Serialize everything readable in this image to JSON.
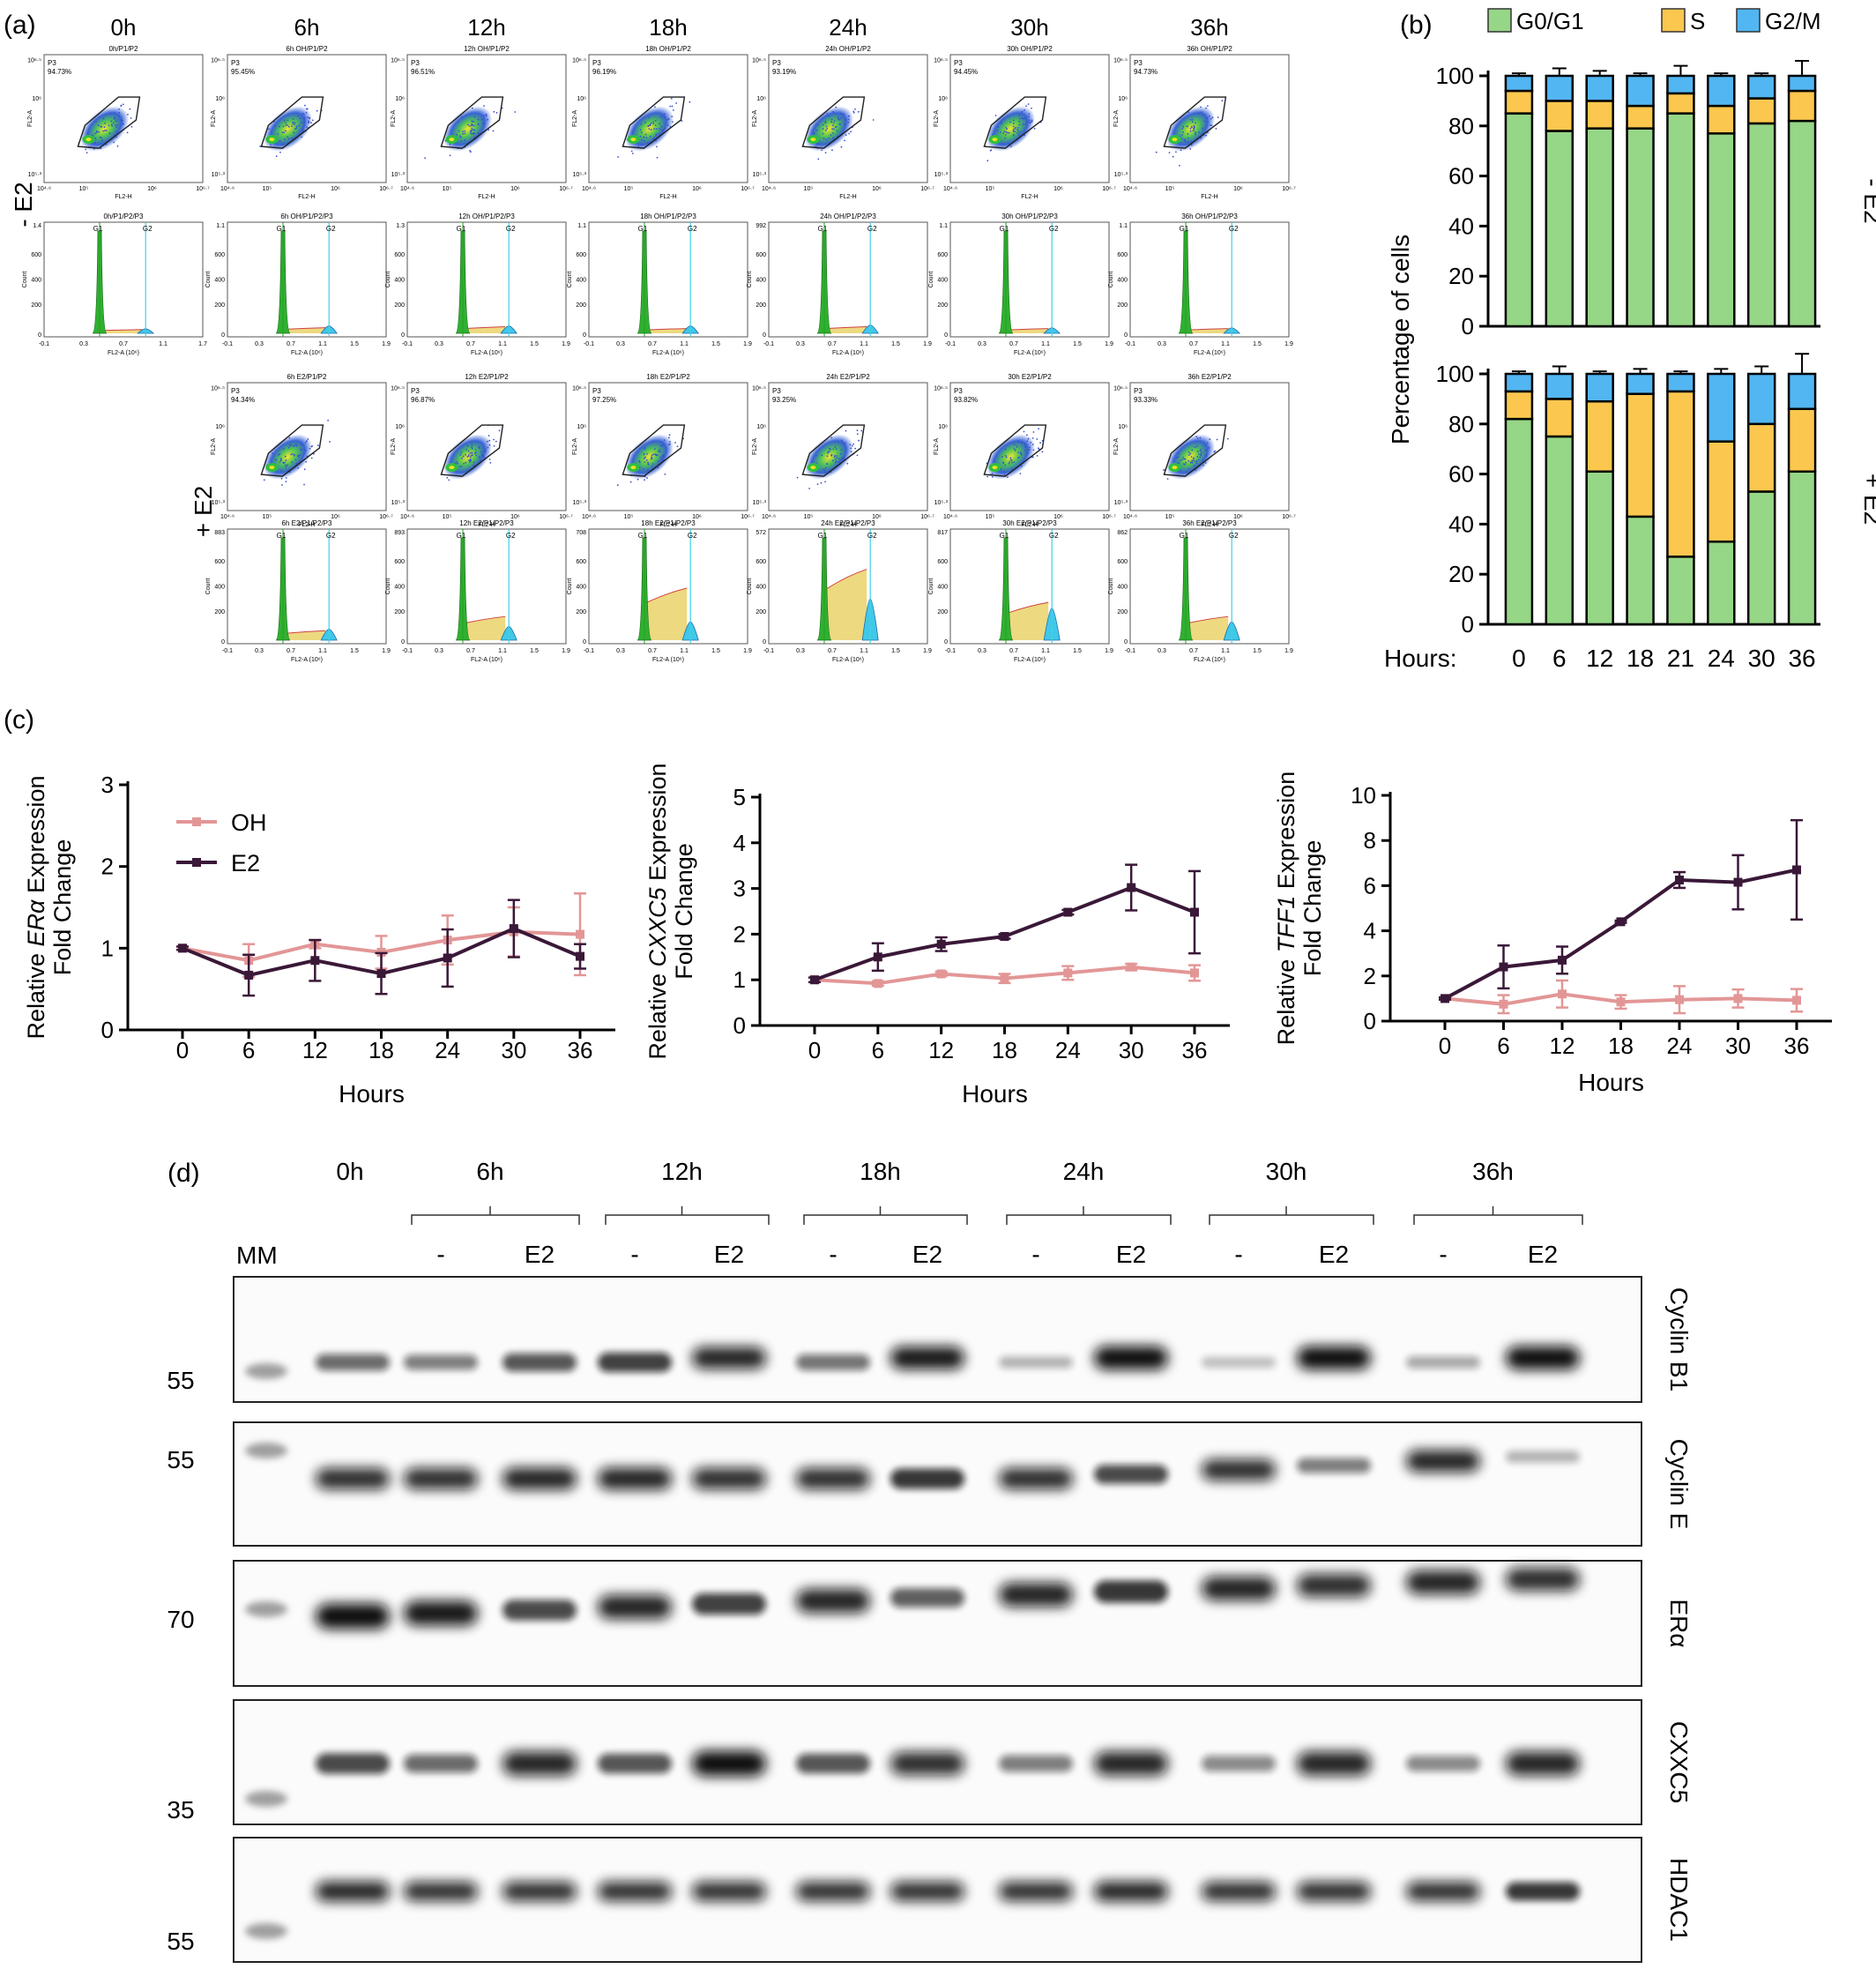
{
  "panel_labels": {
    "a": "(a)",
    "b": "(b)",
    "c": "(c)",
    "d": "(d)"
  },
  "panel_a": {
    "time_labels": [
      "0h",
      "6h",
      "12h",
      "18h",
      "24h",
      "30h",
      "36h"
    ],
    "condition_labels": [
      "- E2",
      "+ E2"
    ],
    "minus_e2": {
      "scatter_titles": [
        "0h/P1/P2",
        "6h OH/P1/P2",
        "12h OH/P1/P2",
        "18h OH/P1/P2",
        "24h OH/P1/P2",
        "30h OH/P1/P2",
        "36h OH/P1/P2"
      ],
      "p3_percent": [
        "94.73%",
        "95.45%",
        "96.51%",
        "96.19%",
        "93.19%",
        "94.45%",
        "94.73%"
      ],
      "hist_titles": [
        "0h/P1/P2/P3",
        "6h OH/P1/P2/P3",
        "12h OH/P1/P2/P3",
        "18h OH/P1/P2/P3",
        "24h OH/P1/P2/P3",
        "30h OH/P1/P2/P3",
        "36h OH/P1/P2/P3"
      ],
      "hist_ymax": [
        "1.4",
        "1.1",
        "1.3",
        "1.1",
        "992",
        "1.1",
        "1.1"
      ],
      "hist_xticks": [
        [
          "-0.1",
          "0.3",
          "0.7",
          "1.1",
          "1.7"
        ],
        [
          "-0.1",
          "0.3",
          "0.7",
          "1.1",
          "1.5",
          "1.9"
        ],
        [
          "-0.1",
          "0.3",
          "0.7",
          "1.1",
          "1.5",
          "1.9"
        ],
        [
          "-0.1",
          "0.3",
          "0.7",
          "1.1",
          "1.5",
          "1.9"
        ],
        [
          "-0.1",
          "0.3",
          "0.7",
          "1.1",
          "1.5",
          "1.9"
        ],
        [
          "-0.1",
          "0.3",
          "0.7",
          "1.1",
          "1.5",
          "1.9"
        ],
        [
          "-0.1",
          "0.3",
          "0.7",
          "1.1",
          "1.5",
          "1.9"
        ]
      ]
    },
    "plus_e2": {
      "scatter_titles": [
        "6h E2/P1/P2",
        "12h E2/P1/P2",
        "18h E2/P1/P2",
        "24h E2/P1/P2",
        "30h E2/P1/P2",
        "36h E2/P1/P2"
      ],
      "p3_percent": [
        "94.34%",
        "96.87%",
        "97.25%",
        "93.25%",
        "93.82%",
        "93.33%"
      ],
      "hist_titles": [
        "6h E2/P1/P2/P3",
        "12h E2/P1/P2/P3",
        "18h E2/P1/P2/P3",
        "24h E2/P1/P2/P3",
        "30h E2/P1/P2/P3",
        "36h E2/P1/P2/P3"
      ],
      "hist_ymax": [
        "883",
        "893",
        "708",
        "572",
        "817",
        "862"
      ],
      "hist_xticks": [
        "-0.1",
        "0.3",
        "0.7",
        "1.1",
        "1.5",
        "1.9"
      ]
    },
    "scatter_axis": {
      "x": "FL2-H",
      "y": "FL2-A",
      "gate": "P3",
      "xticks": [
        "10⁴·⁶",
        "10⁵",
        "10⁶",
        "10⁶·⁷"
      ],
      "yticks": [
        "10⁶·⁵",
        "10⁶",
        "10⁵·³"
      ]
    },
    "hist_axis": {
      "x": "FL2-A (10⁶)",
      "y": "Count",
      "g1": "G1",
      "g2": "G2"
    }
  },
  "chart_data": [
    {
      "type": "bar",
      "stacked": true,
      "panel": "b-top",
      "side_label": "- E2",
      "categories": [
        "0",
        "6",
        "12",
        "18",
        "21",
        "24",
        "30",
        "36"
      ],
      "series": [
        {
          "name": "G0/G1",
          "values": [
            85,
            78,
            79,
            79,
            85,
            77,
            81,
            82
          ],
          "err": [
            1,
            0,
            0,
            6,
            3,
            0,
            0,
            0
          ]
        },
        {
          "name": "S",
          "values": [
            9,
            12,
            11,
            9,
            8,
            11,
            10,
            12
          ],
          "err": [
            0,
            0,
            0,
            0,
            0,
            0,
            0,
            0
          ]
        },
        {
          "name": "G2/M",
          "values": [
            6,
            10,
            10,
            12,
            7,
            12,
            9,
            6
          ],
          "err": [
            1,
            3,
            2,
            1,
            4,
            1,
            1,
            6
          ]
        }
      ],
      "ylim": [
        0,
        100
      ],
      "yticks": [
        "0",
        "20",
        "40",
        "60",
        "80",
        "100"
      ]
    },
    {
      "type": "bar",
      "stacked": true,
      "panel": "b-bottom",
      "side_label": "+ E2",
      "categories": [
        "0",
        "6",
        "12",
        "18",
        "21",
        "24",
        "30",
        "36"
      ],
      "series": [
        {
          "name": "G0/G1",
          "values": [
            82,
            75,
            61,
            43,
            27,
            33,
            53,
            61
          ],
          "err": [
            0,
            0,
            4,
            0,
            5,
            2,
            8,
            9
          ]
        },
        {
          "name": "S",
          "values": [
            11,
            15,
            28,
            49,
            66,
            40,
            27,
            25
          ],
          "err": [
            4,
            5,
            0,
            0,
            0,
            0,
            5,
            0
          ]
        },
        {
          "name": "G2/M",
          "values": [
            7,
            10,
            11,
            8,
            7,
            27,
            20,
            14
          ],
          "err": [
            1,
            3,
            1,
            2,
            1,
            2,
            3,
            8
          ]
        }
      ],
      "ylim": [
        0,
        100
      ],
      "yticks": [
        "0",
        "20",
        "40",
        "60",
        "80",
        "100"
      ]
    },
    {
      "type": "line",
      "panel": "c1",
      "gene": "ERα",
      "x": [
        0,
        6,
        12,
        18,
        24,
        30,
        36
      ],
      "series": [
        {
          "name": "OH",
          "values": [
            1.0,
            0.85,
            1.05,
            0.95,
            1.1,
            1.2,
            1.17
          ],
          "err": [
            0.02,
            0.2,
            0.05,
            0.2,
            0.3,
            0.3,
            0.5
          ]
        },
        {
          "name": "E2",
          "values": [
            1.0,
            0.67,
            0.85,
            0.69,
            0.88,
            1.24,
            0.9
          ],
          "err": [
            0.02,
            0.25,
            0.25,
            0.25,
            0.35,
            0.35,
            0.15
          ]
        }
      ],
      "xlabel": "Hours",
      "ylabel_pre": "Relative ",
      "ylabel_post": " Expression",
      "ylabel2": "Fold Change",
      "ylim": [
        0,
        3
      ],
      "yticks": [
        "0",
        "1",
        "2",
        "3"
      ],
      "xticks": [
        "0",
        "6",
        "12",
        "18",
        "24",
        "30",
        "36"
      ]
    },
    {
      "type": "line",
      "panel": "c2",
      "gene": "CXXC5",
      "x": [
        0,
        6,
        12,
        18,
        24,
        30,
        36
      ],
      "series": [
        {
          "name": "OH",
          "values": [
            1.0,
            0.92,
            1.13,
            1.03,
            1.15,
            1.28,
            1.15
          ],
          "err": [
            0.05,
            0.05,
            0.05,
            0.1,
            0.15,
            0.07,
            0.17
          ]
        },
        {
          "name": "E2",
          "values": [
            1.0,
            1.5,
            1.78,
            1.95,
            2.48,
            3.02,
            2.48
          ],
          "err": [
            0.05,
            0.3,
            0.15,
            0.05,
            0.05,
            0.5,
            0.9
          ]
        }
      ],
      "xlabel": "Hours",
      "ylabel_pre": "Relative ",
      "ylabel_post": " Expression",
      "ylabel2": "Fold Change",
      "ylim": [
        0,
        5
      ],
      "yticks": [
        "0",
        "1",
        "2",
        "3",
        "4",
        "5"
      ],
      "xticks": [
        "0",
        "6",
        "12",
        "18",
        "24",
        "30",
        "36"
      ]
    },
    {
      "type": "line",
      "panel": "c3",
      "gene": "TFF1",
      "x": [
        0,
        6,
        12,
        18,
        24,
        30,
        36
      ],
      "series": [
        {
          "name": "OH",
          "values": [
            1.0,
            0.75,
            1.2,
            0.85,
            0.95,
            1.0,
            0.92
          ],
          "err": [
            0.05,
            0.4,
            0.6,
            0.3,
            0.6,
            0.4,
            0.5
          ]
        },
        {
          "name": "E2",
          "values": [
            1.0,
            2.4,
            2.7,
            4.4,
            6.25,
            6.15,
            6.7
          ],
          "err": [
            0.05,
            0.95,
            0.6,
            0.05,
            0.35,
            1.2,
            2.2
          ]
        }
      ],
      "xlabel": "Hours",
      "ylabel_pre": "Relative ",
      "ylabel_post": " Expression",
      "ylabel2": "Fold Change",
      "ylim": [
        0,
        10
      ],
      "yticks": [
        "0",
        "2",
        "4",
        "6",
        "8",
        "10"
      ],
      "xticks": [
        "0",
        "6",
        "12",
        "18",
        "24",
        "30",
        "36"
      ]
    }
  ],
  "panel_b": {
    "legend": [
      "G0/G1",
      "S",
      "G2/M"
    ],
    "ylabel": "Percentage of cells",
    "xlabel": "Hours:",
    "colors": {
      "G0/G1": "#96d687",
      "S": "#fcc74e",
      "G2/M": "#52b6f2"
    }
  },
  "panel_c_colors": {
    "OH": "#e39696",
    "E2": "#3a1838"
  },
  "panel_d": {
    "time_labels": [
      "0h",
      "6h",
      "12h",
      "18h",
      "24h",
      "30h",
      "36h"
    ],
    "mm_label": "MM",
    "treatment_labels": [
      "-",
      "E2",
      "-",
      "E2",
      "-",
      "E2",
      "-",
      "E2",
      "-",
      "E2",
      "-",
      "E2"
    ],
    "blots": [
      {
        "name": "Cyclin B1",
        "mw": "55",
        "intensity": [
          0.55,
          0.45,
          0.65,
          0.75,
          0.9,
          0.5,
          0.95,
          0.2,
          1.0,
          0.15,
          1.0,
          0.25,
          1.0
        ]
      },
      {
        "name": "Cyclin E",
        "mw": "55",
        "intensity": [
          0.85,
          0.85,
          0.9,
          0.9,
          0.85,
          0.85,
          0.8,
          0.85,
          0.7,
          0.85,
          0.45,
          0.9,
          0.2
        ]
      },
      {
        "name": "ERα",
        "mw": "70",
        "intensity": [
          1.0,
          0.95,
          0.7,
          0.9,
          0.75,
          0.9,
          0.6,
          0.9,
          0.8,
          0.9,
          0.85,
          0.9,
          0.85
        ]
      },
      {
        "name": "CXXC5",
        "mw": "35",
        "intensity": [
          0.7,
          0.55,
          0.9,
          0.65,
          1.0,
          0.65,
          0.85,
          0.45,
          0.9,
          0.4,
          0.9,
          0.4,
          0.9
        ]
      },
      {
        "name": "HDAC1",
        "mw": "55",
        "intensity": [
          0.9,
          0.85,
          0.85,
          0.85,
          0.85,
          0.85,
          0.85,
          0.85,
          0.9,
          0.85,
          0.85,
          0.85,
          0.8
        ]
      }
    ]
  }
}
